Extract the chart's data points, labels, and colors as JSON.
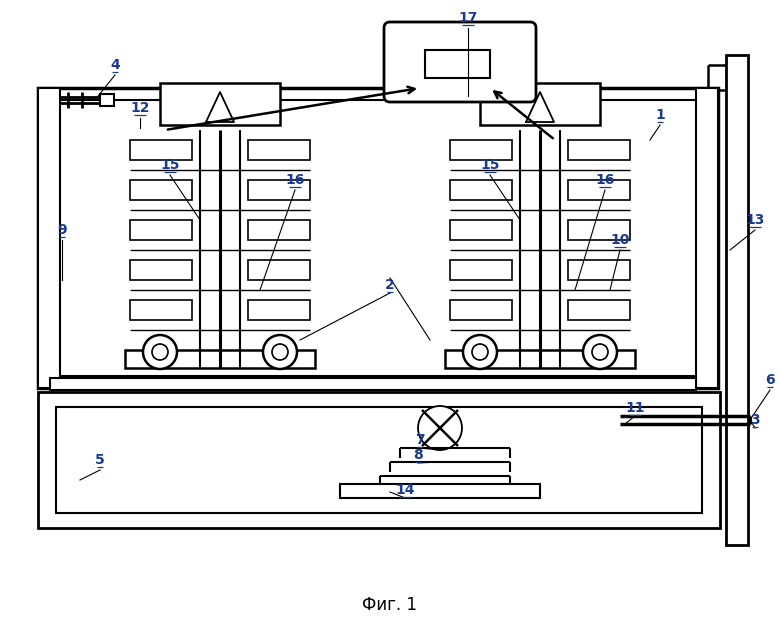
{
  "title": "Фиг. 1",
  "title_fontsize": 12,
  "label_fontsize": 10,
  "line_color": "#000000",
  "label_color": "#1a3a8f",
  "bg_color": "#ffffff",
  "fig_width": 7.8,
  "fig_height": 6.19,
  "dpi": 100
}
